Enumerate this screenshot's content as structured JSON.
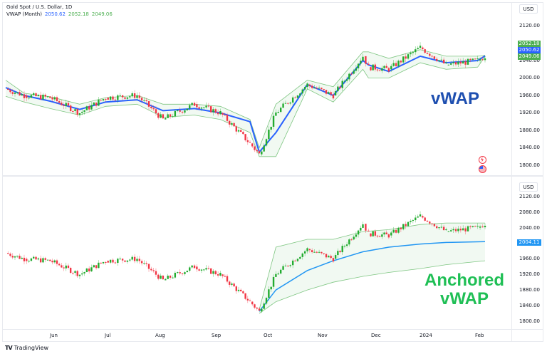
{
  "header": {
    "symbol_title": "Gold Spot / U.S. Dollar, 1D",
    "indicator_name": "VWAP (Month)",
    "indicator_values": [
      "2050.62",
      "2052.18",
      "2049.06"
    ]
  },
  "top_pane": {
    "currency_button": "USD",
    "price_labels": [
      "2120.00",
      "2040.00",
      "2000.00",
      "1960.00",
      "1920.00",
      "1880.00",
      "1840.00",
      "1800.00"
    ],
    "price_tags": [
      {
        "value": "2052.18",
        "color": "#4caf50"
      },
      {
        "value": "2050.62",
        "color": "#2962ff"
      },
      {
        "value": "2049.06",
        "color": "#4caf50"
      }
    ],
    "annotation": "vWAP",
    "annotation_color": "#1e4fb0"
  },
  "bottom_pane": {
    "currency_button": "USD",
    "price_labels": [
      "2120.00",
      "2080.00",
      "2040.00",
      "1960.00",
      "1920.00",
      "1880.00",
      "1840.00",
      "1800.00"
    ],
    "price_tag": {
      "value": "2004.11",
      "color": "#2196f3"
    },
    "annotation_line1": "Anchored",
    "annotation_line2": "vWAP",
    "annotation_color": "#1fbf55"
  },
  "time_axis": {
    "labels": [
      "Jun",
      "Jul",
      "Aug",
      "Sep",
      "Oct",
      "Nov",
      "Dec",
      "2024",
      "Feb"
    ]
  },
  "footer": {
    "brand": "TradingView",
    "logo": "TV"
  },
  "colors": {
    "up": "#22ab2f",
    "down": "#f23645",
    "vwap_line": "#2962ff",
    "band": "#4caf50",
    "band_fill": "#e8f5e9"
  },
  "chart_data": [
    {
      "type": "line",
      "title": "Gold Spot / U.S. Dollar, 1D — VWAP (Month)",
      "xlabel": "",
      "ylabel": "USD",
      "ylim": [
        1790,
        2135
      ],
      "x": [
        "May-22",
        "Jun-1",
        "Jun-15",
        "Jul-1",
        "Jul-15",
        "Aug-1",
        "Aug-15",
        "Sep-1",
        "Sep-15",
        "Oct-1",
        "Oct-6",
        "Oct-15",
        "Nov-1",
        "Nov-15",
        "Dec-1",
        "Dec-4",
        "Dec-15",
        "Jan-1",
        "Jan-15",
        "Feb-1",
        "Feb-5"
      ],
      "series": [
        {
          "name": "Close (approx)",
          "values": [
            1975,
            1960,
            1955,
            1920,
            1955,
            1960,
            1905,
            1940,
            1920,
            1850,
            1825,
            1920,
            1985,
            1960,
            2050,
            2025,
            2020,
            2070,
            2030,
            2040,
            2050
          ]
        },
        {
          "name": "VWAP",
          "values": [
            1978,
            1960,
            1947,
            1928,
            1945,
            1950,
            1925,
            1930,
            1920,
            1900,
            1830,
            1875,
            1985,
            1960,
            2040,
            2030,
            2015,
            2050,
            2035,
            2040,
            2050.62
          ]
        },
        {
          "name": "Upper band",
          "values": [
            1995,
            1965,
            1957,
            1940,
            1955,
            1960,
            1940,
            1940,
            1935,
            1905,
            1840,
            1940,
            1995,
            1980,
            2060,
            2060,
            2045,
            2065,
            2050,
            2050,
            2052.18
          ]
        },
        {
          "name": "Lower band",
          "values": [
            1958,
            1945,
            1930,
            1915,
            1935,
            1940,
            1910,
            1915,
            1905,
            1875,
            1820,
            1820,
            1975,
            1945,
            2020,
            2000,
            2000,
            2035,
            2020,
            2025,
            2049.06
          ]
        }
      ],
      "legend": [
        "VWAP (Month) 2050.62 2052.18 2049.06"
      ],
      "annotation": "vWAP",
      "grid": false
    },
    {
      "type": "line",
      "title": "Gold Spot / U.S. Dollar, 1D — Anchored VWAP",
      "xlabel": "",
      "ylabel": "USD",
      "ylim": [
        1790,
        2135
      ],
      "x": [
        "Oct-6",
        "Oct-15",
        "Nov-1",
        "Nov-15",
        "Dec-1",
        "Dec-15",
        "Jan-1",
        "Jan-15",
        "Feb-5"
      ],
      "series": [
        {
          "name": "Anchored VWAP",
          "values": [
            1825,
            1880,
            1930,
            1955,
            1978,
            1990,
            1998,
            2002,
            2004.11
          ]
        },
        {
          "name": "Upper band",
          "values": [
            1830,
            1990,
            2010,
            2010,
            2030,
            2035,
            2048,
            2052,
            2052
          ]
        },
        {
          "name": "Lower band",
          "values": [
            1820,
            1850,
            1880,
            1900,
            1915,
            1925,
            1935,
            1945,
            1955
          ]
        }
      ],
      "annotation": "Anchored vWAP",
      "grid": false
    }
  ]
}
